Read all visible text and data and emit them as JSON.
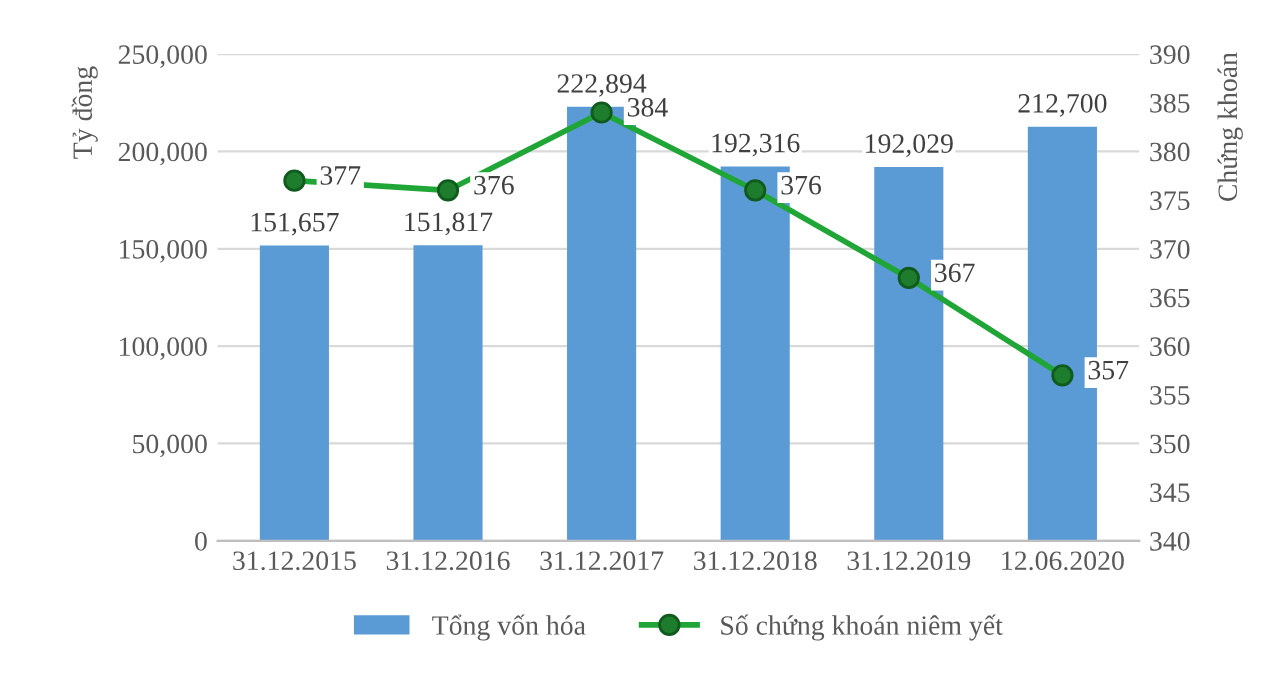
{
  "chart_data": {
    "type": "bar",
    "categories": [
      "31.12.2015",
      "31.12.2016",
      "31.12.2017",
      "31.12.2018",
      "31.12.2019",
      "12.06.2020"
    ],
    "series": [
      {
        "name": "Tổng vốn hóa",
        "color": "#5b9bd5",
        "values": [
          151657,
          151817,
          222894,
          192316,
          192029,
          212700
        ],
        "value_labels": [
          "151,657",
          "151,817",
          "222,894",
          "192,316",
          "192,029",
          "212,700"
        ]
      },
      {
        "name": "Số chứng khoán niêm yết",
        "type": "line",
        "axis": "y2",
        "color": "#1fa637",
        "values": [
          377,
          376,
          384,
          376,
          367,
          357
        ],
        "value_labels": [
          "377",
          "376",
          "384",
          "376",
          "367",
          "357"
        ],
        "marker": "circle"
      }
    ],
    "ylabel": "Tỷ đồng",
    "y2label": "Chứng khoán",
    "ylim": [
      0,
      250000
    ],
    "yticks": [
      {
        "value": 0,
        "label": "0"
      },
      {
        "value": 50000,
        "label": "50,000"
      },
      {
        "value": 100000,
        "label": "100,000"
      },
      {
        "value": 150000,
        "label": "150,000"
      },
      {
        "value": 200000,
        "label": "200,000"
      },
      {
        "value": 250000,
        "label": "250,000"
      }
    ],
    "y2lim": [
      340,
      390
    ],
    "y2ticks": [
      340,
      345,
      350,
      355,
      360,
      365,
      370,
      375,
      380,
      385,
      390
    ],
    "grid": "y",
    "legend": "bottom"
  }
}
